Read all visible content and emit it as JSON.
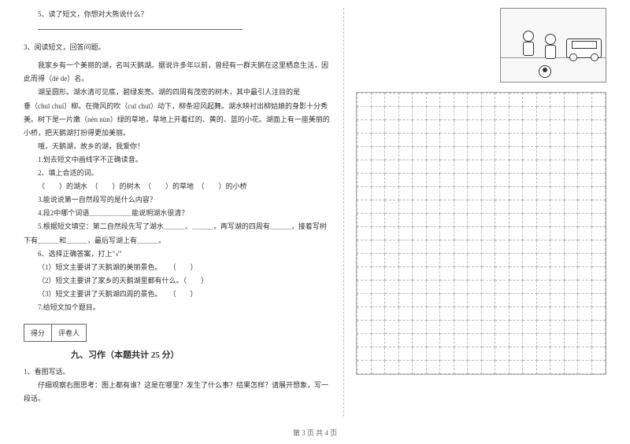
{
  "left": {
    "q5": "5、读了短文，你想对大熊说什么？",
    "q3_header": "3、阅读短文，回答问题。",
    "para1": "我家乡有一个美丽的湖，名叫天鹅湖。据说许多年以前，曾经有一群天鹅在这里栖息生活，因此而得（dé  de）名。",
    "para2_a": "湖呈圆形。湖水清可见底，碧绿发亮。湖的四周有茂密的树木，其中最引人注目的是",
    "para2_b": "垂（chuī   chuí）柳。在微风的吹（cuī   chuī）动下，柳条迎风起舞。湖水映衬出柳姑娘的身影十分秀美。树下是一片嫩（nèn   nùn）绿的草地，草地上开着红的、黄的、蓝的小花。湖面上有一座美丽的小桥，把天鹅湖打扮得更加美丽。",
    "para3": "哦，天鹅湖，故乡的湖，我爱你！",
    "sub1": "1.划去短文中画线字不正确读音。",
    "sub2": "2、填上合适的词。",
    "sub2_line": "（　　）的湖水　（　　）的树木　（　　）的草地　（　　）的小桥",
    "sub3": "3.能说说第一自然段写的是什么内容？",
    "sub4": "4.段2中哪个词语＿＿＿＿＿＿能说明湖水很清？",
    "sub5": "5.根据短文填空：第二自然段先写了湖水＿＿＿、＿＿＿，再写湖的四周有＿＿＿，接着写树下有＿＿＿和＿＿＿，最后写湖上有＿＿＿。",
    "sub6": "6、选择正确答案，打上\"√\"",
    "sub6_1": "（1）短文主要讲了天鹅湖的美丽景色。　　（　　）",
    "sub6_2": "（2）短文主要讲了家乡的天鹅湖里都有什么。（　　）",
    "sub6_3": "（3）短文主要讲了天鹅湖四周的景色。　　（　　）",
    "sub7": "7.给短文加个题目。",
    "score1": "得分",
    "score2": "评卷人",
    "section9": "九、习作（本题共计 25 分）",
    "writing_q": "1、看图写话。",
    "writing_hint": "仔细观察右图思考：图上都有谁？这是在哪里？发生了什么事？结果怎样？请展开想象，写一段话。"
  },
  "footer": "第 3 页 共 4 页",
  "grid": {
    "rows": 21,
    "cols": 18,
    "cell_size": 17,
    "border_color": "#aaaaaa",
    "dash_color": "#bbbbbb"
  },
  "colors": {
    "text": "#333333",
    "background": "#ffffff"
  }
}
